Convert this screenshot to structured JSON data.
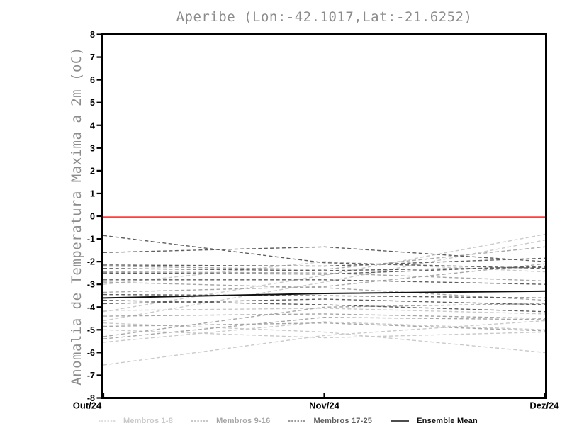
{
  "title": "Aperibe (Lon:-42.1017,Lat:-21.6252)",
  "chart_data": {
    "type": "line",
    "title": "Aperibe (Lon:-42.1017,Lat:-21.6252)",
    "ylabel": "Anomalia de Temperatura Maxima a 2m (oC)",
    "xlabel": "",
    "x_tick_labels": [
      "Out/24",
      "Nov/24",
      "Dez/24"
    ],
    "y_ticks": [
      8,
      7,
      6,
      5,
      4,
      3,
      2,
      1,
      0,
      -1,
      -2,
      -3,
      -4,
      -5,
      -6,
      -7,
      -8
    ],
    "ylim": [
      -8,
      8
    ],
    "grid": false,
    "legend_position": "bottom",
    "zero_line": {
      "value": 0,
      "color": "#f8423d"
    },
    "colors": {
      "members_1_8": "#c9c9c9",
      "members_9_16": "#a6a6a6",
      "members_17_25": "#5e5e5e",
      "ensemble_mean": "#111111",
      "axis": "#000000",
      "title_text": "#8c8c8c"
    },
    "legend": [
      {
        "label": "Membros 1-8",
        "color": "#c9c9c9",
        "style": "dashed"
      },
      {
        "label": "Membros 9-16",
        "color": "#a6a6a6",
        "style": "dashed"
      },
      {
        "label": "Membros 17-25",
        "color": "#5e5e5e",
        "style": "dashed"
      },
      {
        "label": "Ensemble Mean",
        "color": "#111111",
        "style": "solid"
      }
    ],
    "series": [
      {
        "name": "Membro 1",
        "group": "members_1_8",
        "values": [
          -4.2,
          -2.6,
          -0.8
        ]
      },
      {
        "name": "Membro 2",
        "group": "members_1_8",
        "values": [
          -4.6,
          -2.9,
          -1.05
        ]
      },
      {
        "name": "Membro 3",
        "group": "members_1_8",
        "values": [
          -4.15,
          -4.05,
          -4.3
        ]
      },
      {
        "name": "Membro 4",
        "group": "members_1_8",
        "values": [
          -4.7,
          -5.1,
          -6.0
        ]
      },
      {
        "name": "Membro 5",
        "group": "members_1_8",
        "values": [
          -5.0,
          -5.35,
          -5.1
        ]
      },
      {
        "name": "Membro 6",
        "group": "members_1_8",
        "values": [
          -6.55,
          -5.25,
          -4.6
        ]
      },
      {
        "name": "Membro 7",
        "group": "members_1_8",
        "values": [
          -3.0,
          -2.0,
          -2.45
        ]
      },
      {
        "name": "Membro 8",
        "group": "members_1_8",
        "values": [
          -5.55,
          -4.65,
          -5.0
        ]
      },
      {
        "name": "Membro 9",
        "group": "members_9_16",
        "values": [
          -2.2,
          -2.35,
          -1.35
        ]
      },
      {
        "name": "Membro 10",
        "group": "members_9_16",
        "values": [
          -2.45,
          -2.5,
          -2.85
        ]
      },
      {
        "name": "Membro 11",
        "group": "members_9_16",
        "values": [
          -3.35,
          -3.1,
          -2.1
        ]
      },
      {
        "name": "Membro 12",
        "group": "members_9_16",
        "values": [
          -4.4,
          -4.3,
          -4.5
        ]
      },
      {
        "name": "Membro 13",
        "group": "members_9_16",
        "values": [
          -4.85,
          -4.7,
          -5.05
        ]
      },
      {
        "name": "Membro 14",
        "group": "members_9_16",
        "values": [
          -5.3,
          -4.0,
          -3.85
        ]
      },
      {
        "name": "Membro 15",
        "group": "members_9_16",
        "values": [
          -5.4,
          -4.45,
          -4.55
        ]
      },
      {
        "name": "Membro 16",
        "group": "members_9_16",
        "values": [
          -2.9,
          -3.15,
          -3.7
        ]
      },
      {
        "name": "Membro 17",
        "group": "members_17_25",
        "values": [
          -0.85,
          -2.05,
          -2.3
        ]
      },
      {
        "name": "Membro 18",
        "group": "members_17_25",
        "values": [
          -1.6,
          -1.35,
          -2.0
        ]
      },
      {
        "name": "Membro 19",
        "group": "members_17_25",
        "values": [
          -2.15,
          -2.2,
          -1.85
        ]
      },
      {
        "name": "Membro 20",
        "group": "members_17_25",
        "values": [
          -2.3,
          -2.4,
          -2.25
        ]
      },
      {
        "name": "Membro 21",
        "group": "members_17_25",
        "values": [
          -2.5,
          -2.55,
          -2.2
        ]
      },
      {
        "name": "Membro 22",
        "group": "members_17_25",
        "values": [
          -2.8,
          -2.8,
          -3.0
        ]
      },
      {
        "name": "Membro 23",
        "group": "members_17_25",
        "values": [
          -3.45,
          -3.5,
          -3.6
        ]
      },
      {
        "name": "Membro 24",
        "group": "members_17_25",
        "values": [
          -3.7,
          -3.9,
          -4.2
        ]
      },
      {
        "name": "Membro 25",
        "group": "members_17_25",
        "values": [
          -3.85,
          -3.65,
          -3.9
        ]
      },
      {
        "name": "Ensemble Mean",
        "group": "ensemble_mean",
        "values": [
          -3.6,
          -3.4,
          -3.3
        ]
      }
    ]
  }
}
